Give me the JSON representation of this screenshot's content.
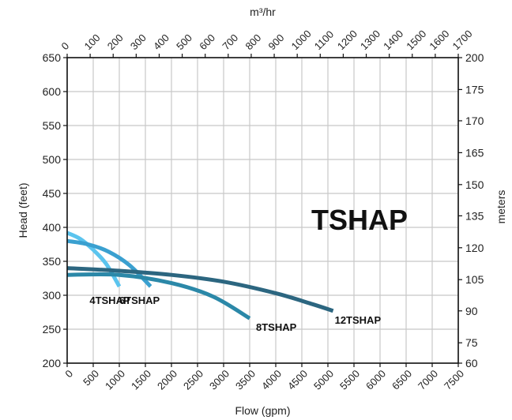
{
  "chart_data": {
    "type": "line",
    "title": "TSHAP",
    "xlabel": "Flow (gpm)",
    "ylabel": "Head (feet)",
    "top_axis_label": "m³/hr",
    "right_axis_label": "meters",
    "xlim": [
      0,
      7500
    ],
    "ylim": [
      200,
      650
    ],
    "grid": true,
    "x_ticks": [
      0,
      500,
      1000,
      1500,
      2000,
      2500,
      3000,
      3500,
      4000,
      4500,
      5000,
      5500,
      6000,
      6500,
      7000,
      7500
    ],
    "y_ticks": [
      200,
      250,
      300,
      350,
      400,
      450,
      500,
      550,
      600,
      650
    ],
    "top_ticks": [
      0,
      100,
      200,
      300,
      400,
      500,
      600,
      700,
      800,
      900,
      1000,
      1100,
      1200,
      1300,
      1400,
      1500,
      1600,
      1700
    ],
    "right_ticks": [
      {
        "label": "200",
        "head_ft": 650
      },
      {
        "label": "175",
        "head_ft": 603
      },
      {
        "label": "170",
        "head_ft": 557
      },
      {
        "label": "165",
        "head_ft": 510
      },
      {
        "label": "150",
        "head_ft": 463
      },
      {
        "label": "135",
        "head_ft": 417
      },
      {
        "label": "120",
        "head_ft": 370
      },
      {
        "label": "105",
        "head_ft": 323
      },
      {
        "label": "90",
        "head_ft": 277
      },
      {
        "label": "75",
        "head_ft": 230
      },
      {
        "label": "60",
        "head_ft": 200
      }
    ],
    "series": [
      {
        "name": "4TSHAP",
        "color": "#5bc4ee",
        "x": [
          0,
          250,
          500,
          750,
          1000
        ],
        "y": [
          392,
          383,
          367,
          346,
          313
        ]
      },
      {
        "name": "6TSHAP",
        "color": "#3aa0d0",
        "x": [
          0,
          400,
          800,
          1200,
          1600
        ],
        "y": [
          380,
          375,
          364,
          344,
          313
        ]
      },
      {
        "name": "8TSHAP",
        "color": "#2b88a8",
        "x": [
          0,
          1000,
          2000,
          2800,
          3500
        ],
        "y": [
          330,
          330,
          318,
          298,
          266
        ]
      },
      {
        "name": "12TSHAP",
        "color": "#2c6680",
        "x": [
          0,
          1000,
          2000,
          3000,
          4000,
          4700,
          5100
        ],
        "y": [
          340,
          336,
          330,
          320,
          303,
          287,
          277
        ]
      }
    ]
  }
}
